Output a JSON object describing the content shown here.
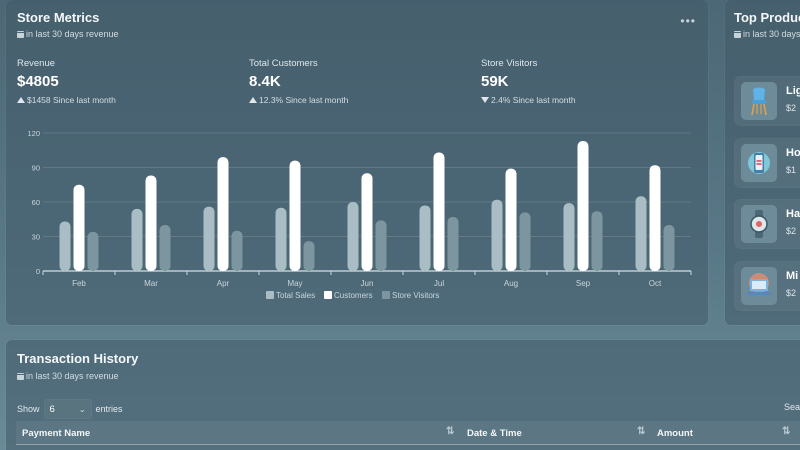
{
  "metrics": {
    "title": "Store Metrics",
    "subtitle": "in last 30 days revenue",
    "more_icon": "more-horizontal-icon",
    "stats": [
      {
        "label": "Revenue",
        "value": "$4805",
        "direction": "up",
        "change": "$1458 Since last month"
      },
      {
        "label": "Total Customers",
        "value": "8.4K",
        "direction": "up",
        "change": "12.3% Since last month"
      },
      {
        "label": "Store Visitors",
        "value": "59K",
        "direction": "down",
        "change": "2.4% Since last month"
      }
    ]
  },
  "chart_data": {
    "type": "bar",
    "categories": [
      "Feb",
      "Mar",
      "Apr",
      "May",
      "Jun",
      "Jul",
      "Aug",
      "Sep",
      "Oct"
    ],
    "series": [
      {
        "name": "Total Sales",
        "color": "#a9bec4",
        "values": [
          43,
          54,
          56,
          55,
          60,
          57,
          62,
          59,
          65
        ]
      },
      {
        "name": "Customers",
        "color": "#ffffff",
        "values": [
          75,
          83,
          99,
          96,
          85,
          103,
          89,
          113,
          92
        ]
      },
      {
        "name": "Store Visitors",
        "color": "#7d959e",
        "values": [
          34,
          40,
          35,
          26,
          44,
          47,
          51,
          52,
          40
        ]
      }
    ],
    "ylim": [
      0,
      120
    ],
    "yticks": [
      0,
      30,
      60,
      90,
      120
    ],
    "grid": true,
    "legend": "bottom"
  },
  "top_products": {
    "title": "Top Produc",
    "subtitle": "in last 30 days",
    "items": [
      {
        "name": "Lig",
        "price": "$2",
        "icon": "chair-icon"
      },
      {
        "name": "Ho",
        "price": "$1",
        "icon": "phone-icon"
      },
      {
        "name": "Ha",
        "price": "$2",
        "icon": "watch-icon"
      },
      {
        "name": "Mi",
        "price": "$2",
        "icon": "laptop-icon"
      }
    ]
  },
  "transactions": {
    "title": "Transaction History",
    "subtitle": "in last 30 days revenue",
    "show_label": "Show",
    "entries_value": "6",
    "entries_label": "entries",
    "search_label": "Sea",
    "columns": [
      "Payment Name",
      "Date & Time",
      "Amount"
    ]
  }
}
